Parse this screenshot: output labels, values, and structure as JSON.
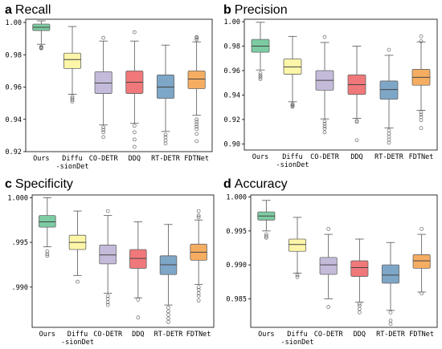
{
  "chart_data": [
    {
      "type": "box",
      "letter": "a",
      "title": "Recall",
      "ylim": [
        0.92,
        1.002
      ],
      "yticks": [
        0.92,
        0.94,
        0.96,
        0.98,
        1.0
      ],
      "ytick_labels": [
        "0.92",
        "0.94",
        "0.96",
        "0.98",
        "1.00"
      ],
      "categories": [
        "Ours",
        "Diffu\n-sionDet",
        "CO-DETR",
        "DDQ",
        "RT-DETR",
        "FDTNet"
      ],
      "boxes": [
        {
          "q1": 0.995,
          "median": 0.997,
          "q3": 0.999,
          "whisker_low": 0.9865,
          "whisker_high": 1.001,
          "outliers": [
            0.985,
            0.9845,
            0.9842,
            0.984
          ]
        },
        {
          "q1": 0.9715,
          "median": 0.977,
          "q3": 0.981,
          "whisker_low": 0.9555,
          "whisker_high": 0.9975,
          "outliers": [
            0.954,
            0.953,
            0.952,
            0.951
          ]
        },
        {
          "q1": 0.956,
          "median": 0.9625,
          "q3": 0.9695,
          "whisker_low": 0.9365,
          "whisker_high": 0.9885,
          "outliers": [
            0.9905,
            0.935,
            0.9335,
            0.932,
            0.929
          ]
        },
        {
          "q1": 0.956,
          "median": 0.963,
          "q3": 0.97,
          "whisker_low": 0.9375,
          "whisker_high": 0.9885,
          "outliers": [
            0.994,
            0.936,
            0.932,
            0.9275,
            0.923
          ]
        },
        {
          "q1": 0.953,
          "median": 0.96,
          "q3": 0.9675,
          "whisker_low": 0.9325,
          "whisker_high": 0.986,
          "outliers": [
            0.9305,
            0.929,
            0.927,
            0.925
          ]
        },
        {
          "q1": 0.959,
          "median": 0.965,
          "q3": 0.97,
          "whisker_low": 0.9425,
          "whisker_high": 0.988,
          "outliers": [
            0.991,
            0.9905,
            0.9895,
            0.94,
            0.9385,
            0.937,
            0.9355,
            0.934,
            0.931,
            0.9265
          ]
        }
      ]
    },
    {
      "type": "box",
      "letter": "b",
      "title": "Precision",
      "ylim": [
        0.895,
        1.002
      ],
      "yticks": [
        0.9,
        0.92,
        0.94,
        0.96,
        0.98,
        1.0
      ],
      "ytick_labels": [
        "0.90",
        "0.92",
        "0.94",
        "0.96",
        "0.98",
        "1.00"
      ],
      "categories": [
        "Ours",
        "Diffu\n-sionDet",
        "CO-DETR",
        "DDQ",
        "RT-DETR",
        "FDTNet"
      ],
      "boxes": [
        {
          "q1": 0.975,
          "median": 0.98,
          "q3": 0.9855,
          "whisker_low": 0.9605,
          "whisker_high": 0.9995,
          "outliers": [
            0.958,
            0.956,
            0.9545,
            0.953
          ]
        },
        {
          "q1": 0.957,
          "median": 0.963,
          "q3": 0.9695,
          "whisker_low": 0.9345,
          "whisker_high": 0.988,
          "outliers": [
            0.9325,
            0.932,
            0.931,
            0.9305
          ]
        },
        {
          "q1": 0.944,
          "median": 0.952,
          "q3": 0.96,
          "whisker_low": 0.9205,
          "whisker_high": 0.983,
          "outliers": [
            0.9875,
            0.9185,
            0.9165,
            0.9145,
            0.9125,
            0.9095
          ]
        },
        {
          "q1": 0.9405,
          "median": 0.9485,
          "q3": 0.9565,
          "whisker_low": 0.921,
          "whisker_high": 0.98,
          "outliers": [
            0.919,
            0.918,
            0.903
          ]
        },
        {
          "q1": 0.9365,
          "median": 0.9445,
          "q3": 0.9515,
          "whisker_low": 0.913,
          "whisker_high": 0.9725,
          "outliers": [
            0.977,
            0.911,
            0.9085,
            0.906,
            0.9035,
            0.901
          ]
        },
        {
          "q1": 0.948,
          "median": 0.9545,
          "q3": 0.961,
          "whisker_low": 0.9275,
          "whisker_high": 0.9835,
          "outliers": [
            0.988,
            0.984,
            0.926,
            0.924,
            0.922,
            0.9195,
            0.913
          ]
        }
      ]
    },
    {
      "type": "box",
      "letter": "c",
      "title": "Specificity",
      "ylim": [
        0.9855,
        1.0003
      ],
      "yticks": [
        0.99,
        0.995,
        1.0
      ],
      "ytick_labels": [
        ".990",
        ".995",
        "1.000"
      ],
      "categories": [
        "Ours",
        "Diffu\n-sionDet",
        "CO-DETR",
        "DDQ",
        "RT-DETR",
        "FDTNet"
      ],
      "boxes": [
        {
          "q1": 0.9967,
          "median": 0.9973,
          "q3": 0.998,
          "whisker_low": 0.9945,
          "whisker_high": 1.0,
          "outliers": [
            0.994,
            0.9937,
            0.9935
          ]
        },
        {
          "q1": 0.9942,
          "median": 0.995,
          "q3": 0.9958,
          "whisker_low": 0.9913,
          "whisker_high": 0.9985,
          "outliers": [
            0.9906
          ]
        },
        {
          "q1": 0.9926,
          "median": 0.9936,
          "q3": 0.9947,
          "whisker_low": 0.9893,
          "whisker_high": 0.998,
          "outliers": [
            0.9985,
            0.989,
            0.9887,
            0.9883,
            0.988
          ]
        },
        {
          "q1": 0.9921,
          "median": 0.9932,
          "q3": 0.9942,
          "whisker_low": 0.9888,
          "whisker_high": 0.9973,
          "outliers": [
            0.9886,
            0.9866
          ]
        },
        {
          "q1": 0.9914,
          "median": 0.9925,
          "q3": 0.9935,
          "whisker_low": 0.988,
          "whisker_high": 0.997,
          "outliers": [
            0.9877,
            0.9873,
            0.9869,
            0.9865,
            0.9861
          ]
        },
        {
          "q1": 0.993,
          "median": 0.9939,
          "q3": 0.9948,
          "whisker_low": 0.9903,
          "whisker_high": 0.9975,
          "outliers": [
            0.9985,
            0.998,
            0.9978,
            0.99,
            0.9897,
            0.9893,
            0.989,
            0.9885
          ]
        }
      ]
    },
    {
      "type": "box",
      "letter": "d",
      "title": "Accuracy",
      "ylim": [
        0.9808,
        1.0003
      ],
      "yticks": [
        0.985,
        0.99,
        0.995,
        1.0
      ],
      "ytick_labels": [
        "0.985",
        "0.990",
        "0.995",
        "1.000"
      ],
      "categories": [
        "Ours",
        "Diffu\n-sionDet",
        "CO-DETR",
        "DDQ",
        "RT-DETR",
        "FDTNet"
      ],
      "boxes": [
        {
          "q1": 0.9966,
          "median": 0.9972,
          "q3": 0.9978,
          "whisker_low": 0.995,
          "whisker_high": 0.9995,
          "outliers": [
            0.9945,
            0.9942,
            0.994
          ]
        },
        {
          "q1": 0.992,
          "median": 0.993,
          "q3": 0.9938,
          "whisker_low": 0.9888,
          "whisker_high": 0.997,
          "outliers": [
            0.9885,
            0.9882
          ]
        },
        {
          "q1": 0.9886,
          "median": 0.99,
          "q3": 0.9911,
          "whisker_low": 0.985,
          "whisker_high": 0.9945,
          "outliers": [
            0.9953,
            0.9838
          ]
        },
        {
          "q1": 0.9883,
          "median": 0.9896,
          "q3": 0.9906,
          "whisker_low": 0.9845,
          "whisker_high": 0.9938,
          "outliers": [
            0.9843,
            0.984,
            0.9835,
            0.983
          ]
        },
        {
          "q1": 0.9873,
          "median": 0.9885,
          "q3": 0.99,
          "whisker_low": 0.9833,
          "whisker_high": 0.9933,
          "outliers": [
            0.983,
            0.9818,
            0.9813
          ]
        },
        {
          "q1": 0.9895,
          "median": 0.9906,
          "q3": 0.9915,
          "whisker_low": 0.986,
          "whisker_high": 0.9945,
          "outliers": [
            0.9953,
            0.9858
          ]
        }
      ]
    }
  ],
  "colors": [
    "#7ccba2",
    "#fdf6a9",
    "#c4bbda",
    "#f0787a",
    "#7ea6c7",
    "#f5ad62"
  ],
  "stroke": "#666666"
}
